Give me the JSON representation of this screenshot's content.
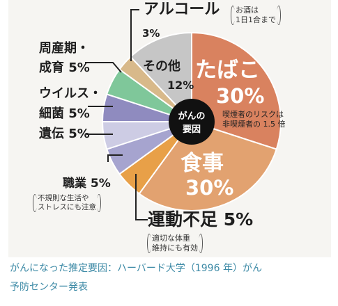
{
  "chart_data": {
    "type": "pie",
    "center_label": [
      "がんの",
      "要因"
    ],
    "slices": [
      {
        "name": "たばこ",
        "value": 30,
        "value_label": "30%",
        "color": "#d9825f",
        "note": [
          "喫煙者のリスクは",
          "非喫煙者の 1.5 倍"
        ]
      },
      {
        "name": "食事",
        "value": 30,
        "value_label": "30%",
        "color": "#e2a270",
        "note": []
      },
      {
        "name": "運動不足",
        "value": 5,
        "value_label": "5%",
        "color": "#e8a048",
        "note": [
          "適切な体重",
          "維持にも有効"
        ]
      },
      {
        "name": "職業",
        "value": 5,
        "value_label": "5%",
        "color": "#a6a4cf",
        "note": [
          "不規則な生活や",
          "ストレスにも注意"
        ]
      },
      {
        "name": "遺伝",
        "value": 5,
        "value_label": "5%",
        "color": "#cdcce4",
        "note": []
      },
      {
        "name": "ウイルス・細菌",
        "value": 5,
        "value_label": "5%",
        "color": "#8f8bbf",
        "note": []
      },
      {
        "name": "周産期・成育",
        "value": 5,
        "value_label": "5%",
        "color": "#7fc79a",
        "note": []
      },
      {
        "name": "アルコール",
        "value": 3,
        "value_label": "3%",
        "color": "#d8b98a",
        "note": [
          "お酒は",
          "1日1合まで"
        ]
      },
      {
        "name": "その他",
        "value": 12,
        "value_label": "12%",
        "color": "#c6c6c6",
        "note": []
      }
    ]
  },
  "labels": {
    "tabako_name": "たばこ",
    "tabako_pct": "30%",
    "tabako_note1": "喫煙者のリスクは",
    "tabako_note2": "非喫煙者の 1.5 倍",
    "shokuji_name": "食事",
    "shokuji_pct": "30%",
    "undo_text": "運動不足 5%",
    "undo_note1": "適切な体重",
    "undo_note2": "維持にも有効",
    "shokugyo_text": "職業 5%",
    "shokugyo_note1": "不規則な生活や",
    "shokugyo_note2": "ストレスにも注意",
    "iden_text": "遺伝 5%",
    "virus_line1": "ウイルス・",
    "virus_line2": "細菌 5%",
    "shusanki_line1": "周産期・",
    "shusanki_line2": "成育 5%",
    "alcohol_name": "アルコール",
    "alcohol_pct": "3%",
    "alcohol_note1": "お酒は",
    "alcohol_note2": "1日1合まで",
    "sonota_name": "その他",
    "sonota_pct": "12%",
    "center_line1": "がんの",
    "center_line2": "要因"
  },
  "caption": {
    "line1": "がんになった推定要因：ハーバード大学（1996 年）がん",
    "line2": "予防センター発表"
  }
}
